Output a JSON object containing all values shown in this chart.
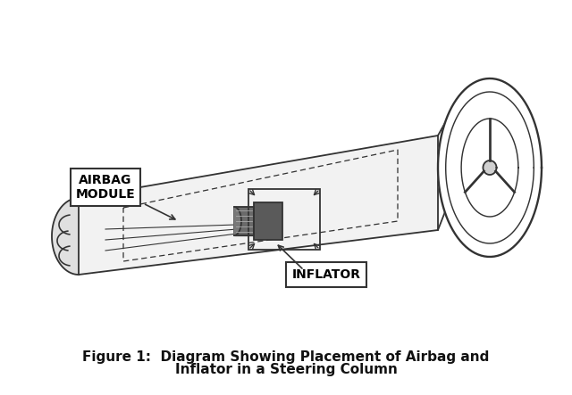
{
  "bg_color": "#ffffff",
  "line_color": "#333333",
  "dark_fill": "#555555",
  "light_fill": "#e8e8e8",
  "label_airbag": "AIRBAG\nMODULE",
  "label_inflator": "INFLATOR",
  "caption_line1": "Figure 1:  Diagram Showing Placement of Airbag and",
  "caption_line2": "Inflator in a Steering Column",
  "caption_fontsize": 11,
  "label_fontsize": 10
}
